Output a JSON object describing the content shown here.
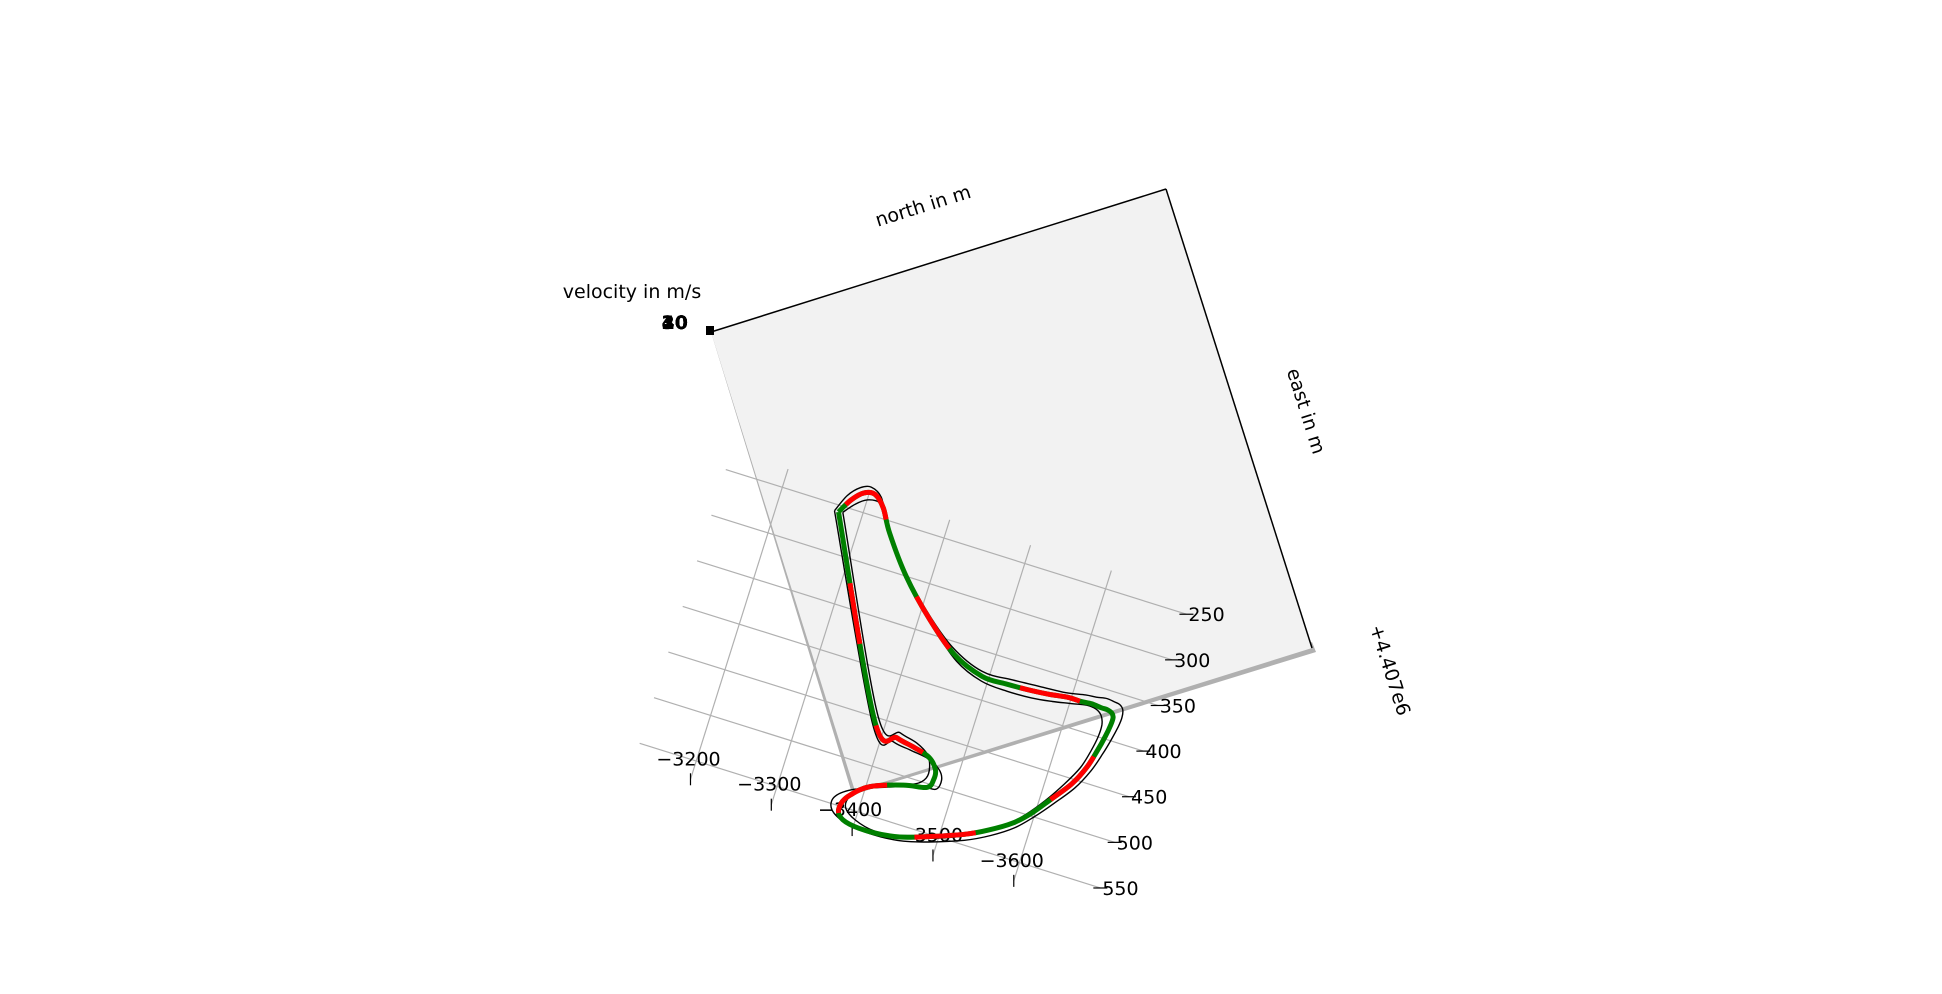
{
  "chart_data": {
    "type": "line",
    "projection": "3d",
    "xlabel": "north in m",
    "ylabel": "east in m",
    "zlabel": "velocity in m/s",
    "x_offset_text": "",
    "y_offset_text": "+4.407e6",
    "x_ticks": [
      -3200,
      -3300,
      -3400,
      -3500,
      -3600
    ],
    "x_tick_labels": [
      "−3200",
      "−3300",
      "−3400",
      "−3500",
      "−3600"
    ],
    "y_ticks": [
      250,
      300,
      350,
      400,
      450,
      500,
      550
    ],
    "y_tick_labels": [
      "250",
      "300",
      "350",
      "400",
      "450",
      "500",
      "550"
    ],
    "z_tick_labels": [
      "0",
      "10",
      "20",
      "30",
      "40"
    ],
    "xlim": [
      -3130,
      -3700
    ],
    "ylim": [
      230,
      570
    ],
    "grid": true,
    "colors": {
      "pane": "#f2f2f2",
      "grid": "#b0b0b0",
      "boundary": "#000000",
      "accelerating": "#008000",
      "braking": "#ff0000",
      "edge_shadow": "#b0b0b0"
    },
    "series": [
      {
        "role": "outer-boundary",
        "x": [
          -3267,
          -3385,
          -3415,
          -3437,
          -3460,
          -3476,
          -3483,
          -3480,
          -3463,
          -3425,
          -3385,
          -3368,
          -3370,
          -3390,
          -3420,
          -3455,
          -3490,
          -3530,
          -3558,
          -3582,
          -3600,
          -3618,
          -3636,
          -3648,
          -3655,
          -3660,
          -3663,
          -3664,
          -3662,
          -3657,
          -3650,
          -3640,
          -3628,
          -3615,
          -3592,
          -3560,
          -3527,
          -3490,
          -3448,
          -3405,
          -3362,
          -3330,
          -3315,
          -3300,
          -3288,
          -3276,
          -3267
        ],
        "y": [
          257,
          457,
          469,
          472,
          475,
          482,
          492,
          503,
          505,
          516,
          530,
          543,
          556,
          565,
          568,
          566,
          558,
          545,
          532,
          517,
          500,
          480,
          458,
          436,
          416,
          398,
          384,
          373,
          365,
          361,
          360,
          359,
          361,
          362,
          366,
          368,
          370,
          371,
          356,
          327,
          290,
          252,
          229,
          222,
          226,
          238,
          257
        ]
      },
      {
        "role": "inner-boundary",
        "x": [
          -3277,
          -3388,
          -3420,
          -3442,
          -3458,
          -3465,
          -3465,
          -3455,
          -3430,
          -3398,
          -3385,
          -3385,
          -3400,
          -3425,
          -3457,
          -3490,
          -3525,
          -3550,
          -3573,
          -3590,
          -3607,
          -3623,
          -3635,
          -3641,
          -3644,
          -3644,
          -3640,
          -3632,
          -3620,
          -3603,
          -3580,
          -3555,
          -3525,
          -3493,
          -3458,
          -3420,
          -3380,
          -3344,
          -3327,
          -3315,
          -3300,
          -3288,
          -3277
        ],
        "y": [
          256,
          447,
          458,
          463,
          471,
          483,
          495,
          504,
          511,
          526,
          538,
          550,
          559,
          564,
          562,
          554,
          542,
          530,
          516,
          500,
          480,
          457,
          436,
          416,
          400,
          387,
          378,
          373,
          372,
          375,
          379,
          382,
          383,
          381,
          369,
          342,
          307,
          270,
          247,
          235,
          236,
          244,
          256
        ]
      },
      {
        "role": "racing-line",
        "x": [
          -3272,
          -3386,
          -3418,
          -3440,
          -3460,
          -3472,
          -3474,
          -3469,
          -3442,
          -3405,
          -3386,
          -3378,
          -3380,
          -3395,
          -3423,
          -3456,
          -3490,
          -3528,
          -3554,
          -3578,
          -3596,
          -3613,
          -3631,
          -3642,
          -3648,
          -3652,
          -3654,
          -3654,
          -3651,
          -3645,
          -3637,
          -3625,
          -3612,
          -3596,
          -3573,
          -3547,
          -3521,
          -3492,
          -3453,
          -3412,
          -3371,
          -3337,
          -3321,
          -3307,
          -3294,
          -3282,
          -3272
        ],
        "y": [
          257,
          453,
          464,
          468,
          473,
          483,
          494,
          504,
          509,
          521,
          535,
          547,
          559,
          565,
          566,
          562,
          552,
          539,
          527,
          513,
          497,
          477,
          455,
          434,
          414,
          397,
          384,
          376,
          372,
          370,
          370,
          369,
          370,
          370,
          373,
          375,
          376,
          376,
          363,
          335,
          300,
          262,
          239,
          228,
          230,
          241,
          257
        ],
        "segments": [
          "accelerating",
          "braking",
          "accelerating",
          "braking",
          "accelerating",
          "braking",
          "accelerating",
          "braking",
          "accelerating",
          "braking",
          "accelerating",
          "braking",
          "accelerating",
          "braking",
          "accelerating",
          "braking"
        ]
      }
    ]
  }
}
